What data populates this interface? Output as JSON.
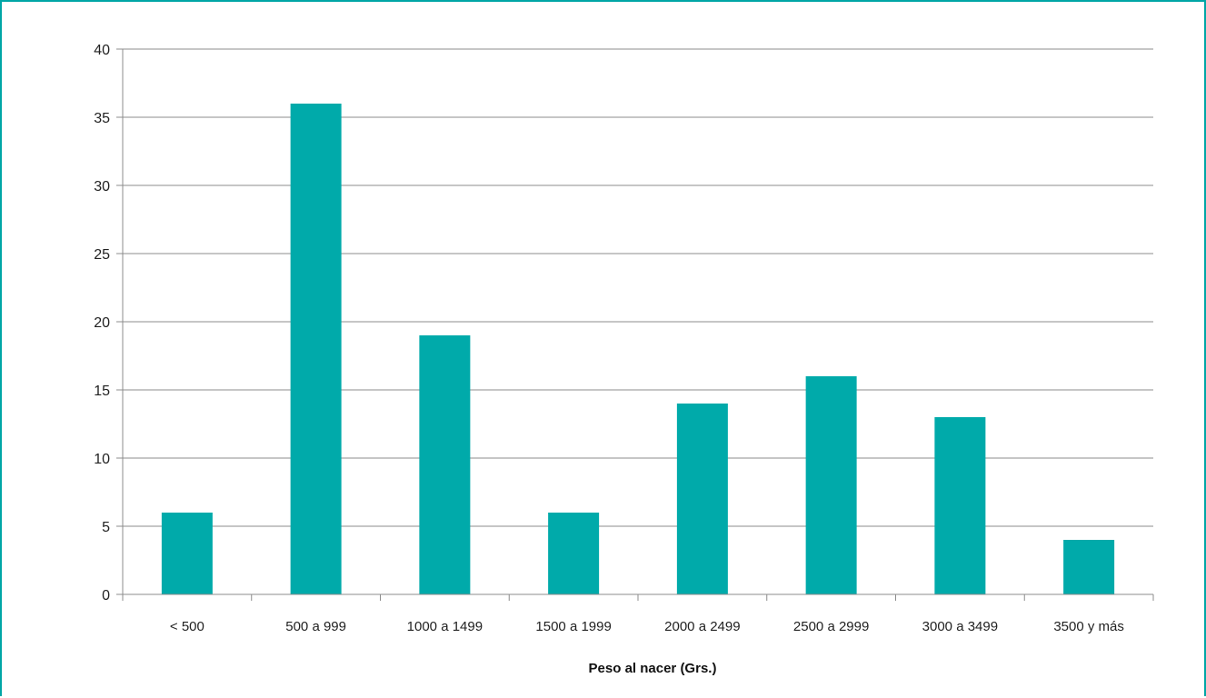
{
  "chart_data": {
    "type": "bar",
    "categories": [
      "< 500",
      "500 a 999",
      "1000 a 1499",
      "1500 a 1999",
      "2000 a 2499",
      "2500 a 2999",
      "3000 a 3499",
      "3500 y más"
    ],
    "values": [
      6,
      36,
      19,
      6,
      14,
      16,
      13,
      4
    ],
    "xlabel": "Peso al nacer (Grs.)",
    "ylabel": "",
    "ylim": [
      0,
      40
    ],
    "yticks": [
      0,
      5,
      10,
      15,
      20,
      25,
      30,
      35,
      40
    ],
    "grid": true,
    "colors": {
      "bar": "#00aaaa",
      "frame": "#00a6a6",
      "grid": "#8c8c8c",
      "axis": "#8c8c8c"
    }
  }
}
